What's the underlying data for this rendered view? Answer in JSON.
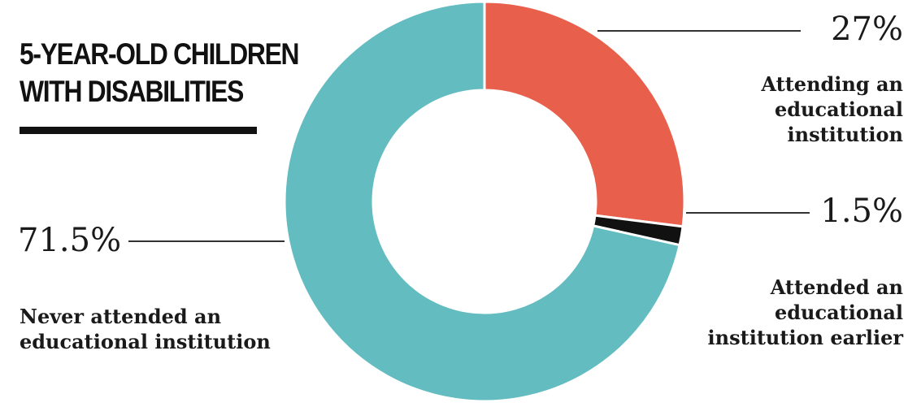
{
  "title_lines": [
    "5-YEAR-OLD CHILDREN",
    "WITH DISABILITIES"
  ],
  "colors": {
    "attending": "#E8604C",
    "attended_earlier": "#111111",
    "never_attended": "#62BCC0"
  },
  "chart_data": {
    "type": "pie",
    "style": "donut",
    "title": "5-YEAR-OLD CHILDREN WITH DISABILITIES",
    "slices": [
      {
        "label": "Attending an educational institution",
        "value": 27,
        "display": "27%",
        "color": "#E8604C"
      },
      {
        "label": "Attended an educational institution earlier",
        "value": 1.5,
        "display": "1.5%",
        "color": "#111111"
      },
      {
        "label": "Never attended an educational institution",
        "value": 71.5,
        "display": "71.5%",
        "color": "#62BCC0"
      }
    ]
  },
  "labels": {
    "attending": {
      "pct": "27%",
      "text": "Attending an\neducational\ninstitution"
    },
    "earlier": {
      "pct": "1.5%",
      "text": "Attended an\neducational\ninstitution earlier"
    },
    "never": {
      "pct": "71.5%",
      "text": "Never attended an\neducational institution"
    }
  }
}
